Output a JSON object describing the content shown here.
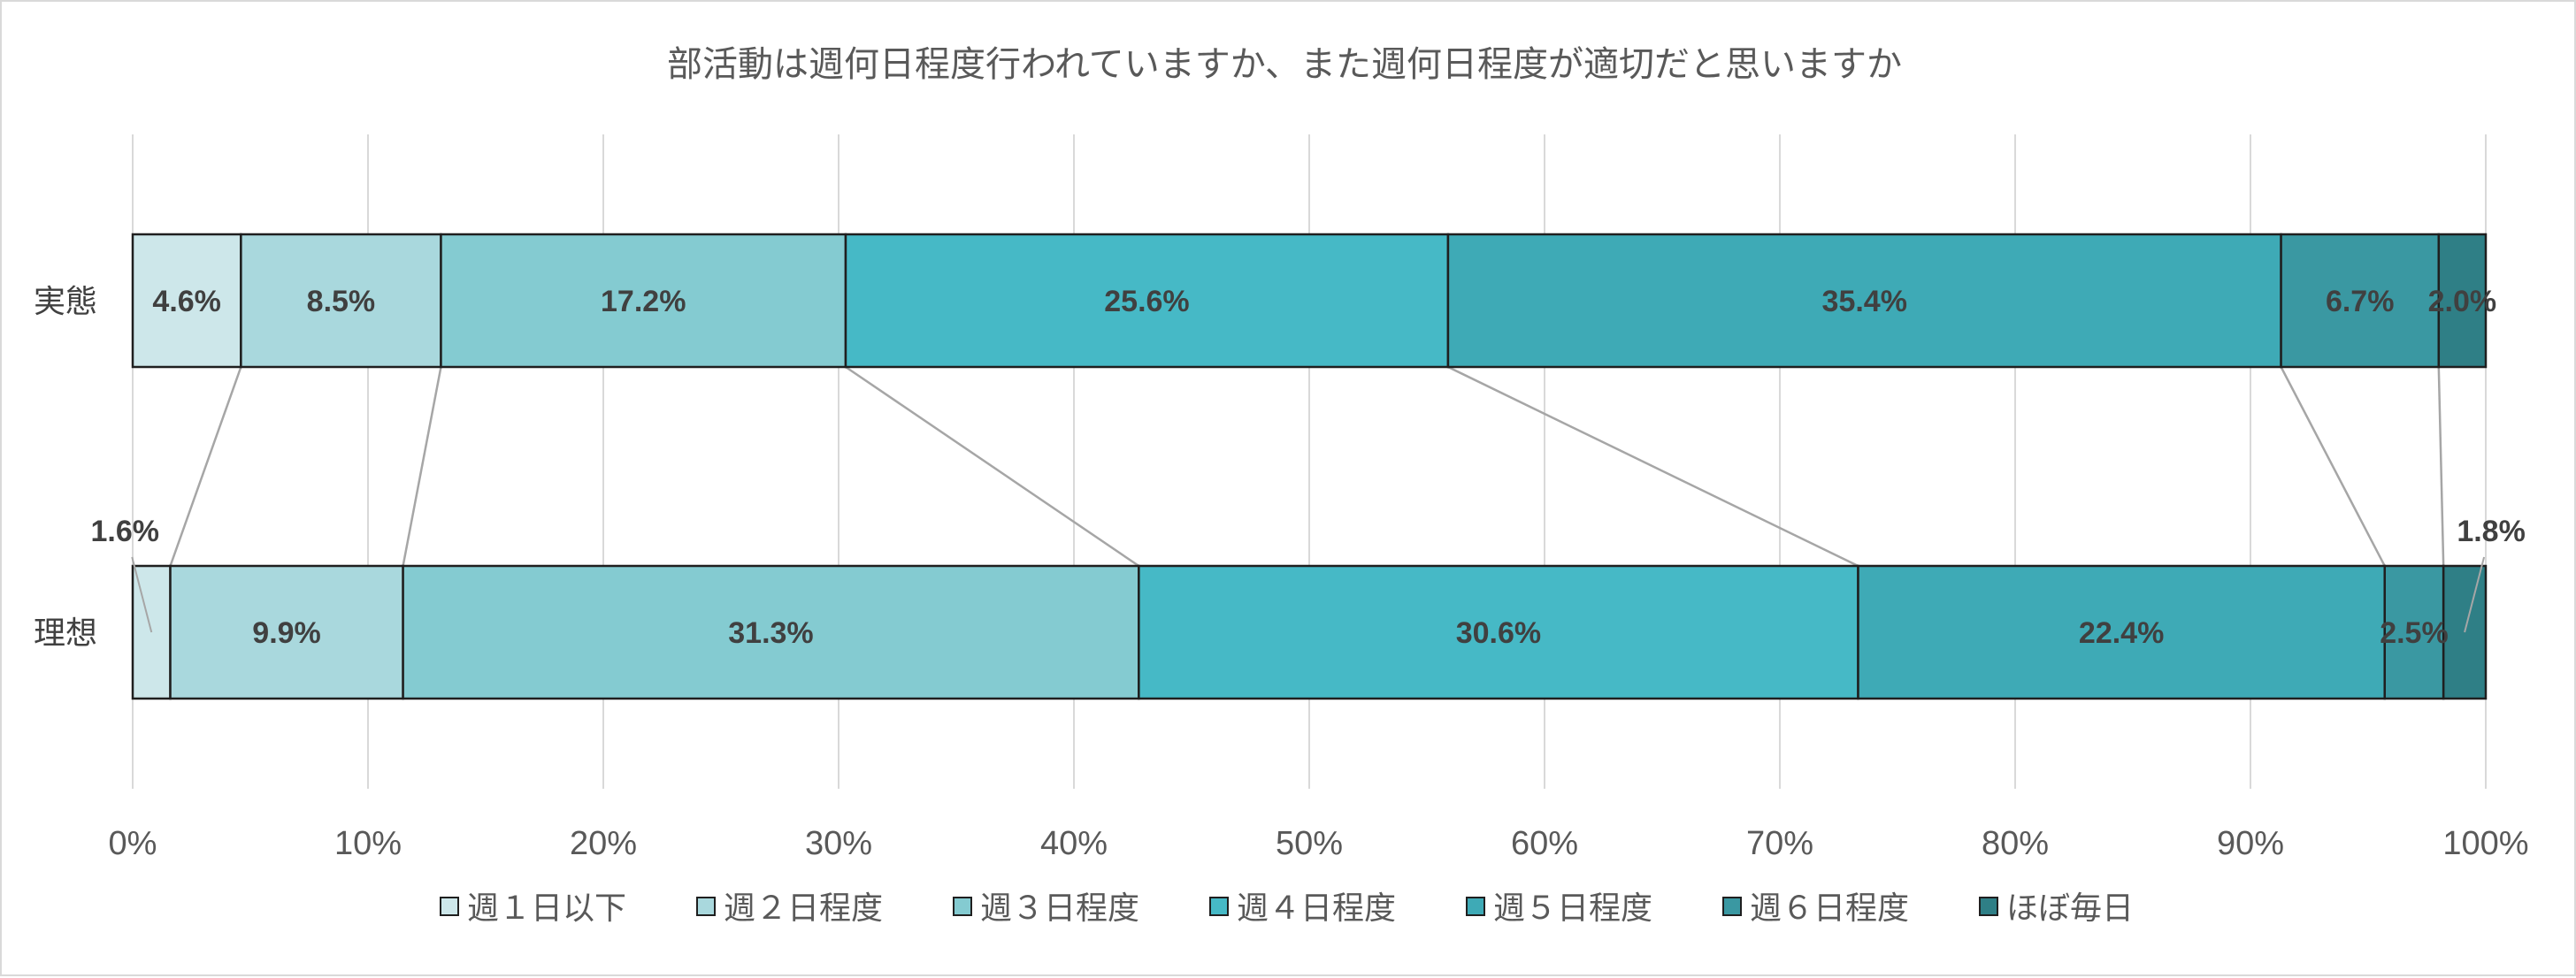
{
  "chart_data": {
    "type": "bar",
    "orientation": "horizontal",
    "stacked": "percent",
    "title": "部活動は週何日程度行われていますか、また週何日程度が適切だと思いますか",
    "categories": [
      "実態",
      "理想"
    ],
    "series": [
      {
        "name": "週１日以下",
        "values": [
          4.6,
          1.6
        ],
        "color": "#cde7ea"
      },
      {
        "name": "週２日程度",
        "values": [
          8.5,
          9.9
        ],
        "color": "#a9d8dd"
      },
      {
        "name": "週３日程度",
        "values": [
          17.2,
          31.3
        ],
        "color": "#84cbd1"
      },
      {
        "name": "週４日程度",
        "values": [
          25.6,
          30.6
        ],
        "color": "#46b9c6"
      },
      {
        "name": "週５日程度",
        "values": [
          35.4,
          22.4
        ],
        "color": "#3eaab6"
      },
      {
        "name": "週６日程度",
        "values": [
          6.7,
          2.5
        ],
        "color": "#3a98a2"
      },
      {
        "name": "ほぼ毎日",
        "values": [
          2.0,
          1.8
        ],
        "color": "#2f7f86"
      }
    ],
    "x_ticks": [
      "0%",
      "10%",
      "20%",
      "30%",
      "40%",
      "50%",
      "60%",
      "70%",
      "80%",
      "90%",
      "100%"
    ],
    "xlim": [
      0,
      100
    ],
    "grid": true,
    "series_lines": true,
    "legend_position": "bottom"
  }
}
